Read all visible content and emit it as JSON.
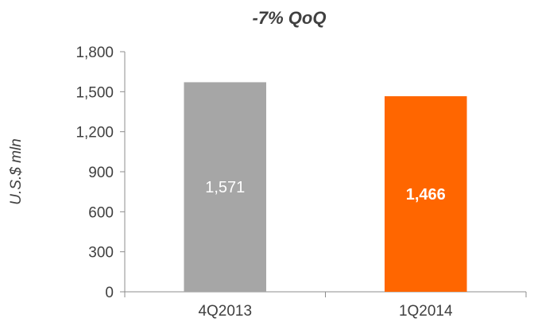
{
  "chart_data": {
    "type": "bar",
    "title": "-7% QoQ",
    "xlabel": "",
    "ylabel": "U.S.$ mln",
    "ylim": [
      0,
      1800
    ],
    "yticks": [
      0,
      300,
      600,
      900,
      1200,
      1500,
      1800
    ],
    "ytick_labels": [
      "0",
      "300",
      "600",
      "900",
      "1,200",
      "1,500",
      "1,800"
    ],
    "categories": [
      "4Q2013",
      "1Q2014"
    ],
    "values": [
      1571,
      1466
    ],
    "data_labels": [
      "1,571",
      "1,466"
    ],
    "bar_colors": [
      "#a6a6a6",
      "#ff6600"
    ],
    "label_colors": [
      "#ffffff",
      "#ffffff"
    ],
    "label_bold": [
      false,
      true
    ],
    "grid": false,
    "legend": "none"
  }
}
